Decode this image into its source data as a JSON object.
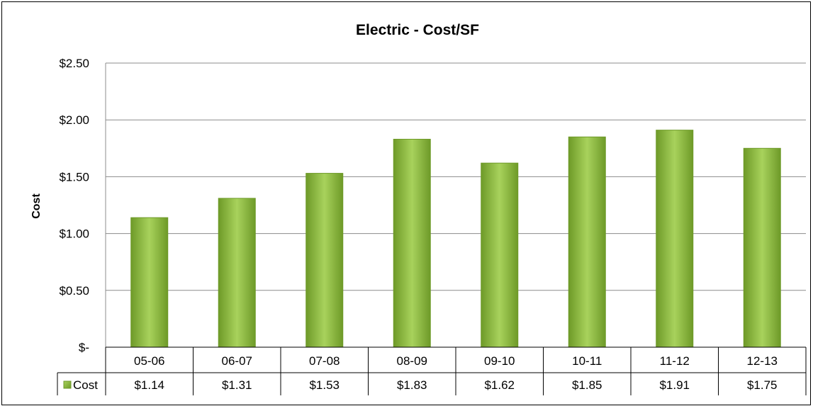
{
  "chart_data": {
    "type": "bar",
    "title": "Electric - Cost/SF",
    "ylabel": "Cost",
    "xlabel": "",
    "categories": [
      "05-06",
      "06-07",
      "07-08",
      "08-09",
      "09-10",
      "10-11",
      "11-12",
      "12-13"
    ],
    "series": [
      {
        "name": "Cost",
        "values": [
          1.14,
          1.31,
          1.53,
          1.83,
          1.62,
          1.85,
          1.91,
          1.75
        ]
      }
    ],
    "data_labels": [
      "$1.14",
      "$1.31",
      "$1.53",
      "$1.83",
      "$1.62",
      "$1.85",
      "$1.91",
      "$1.75"
    ],
    "ylim": [
      0,
      2.5
    ],
    "yticks": [
      0,
      0.5,
      1.0,
      1.5,
      2.0,
      2.5
    ],
    "ytick_labels": [
      "$-",
      "$0.50",
      "$1.00",
      "$1.50",
      "$2.00",
      "$2.50"
    ],
    "grid": true,
    "legend": "data-table",
    "colors": {
      "bar": "#8cba3a",
      "bar_dark": "#6e9a28",
      "bar_light": "#a8d25c",
      "grid": "#8c8c8c"
    }
  }
}
